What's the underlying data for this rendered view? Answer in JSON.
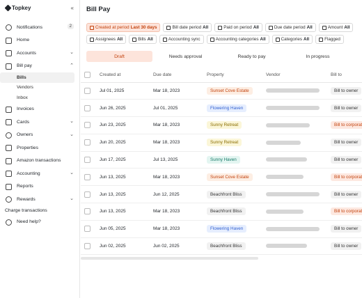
{
  "brand": {
    "name": "Topkey",
    "collapse_icon": "«"
  },
  "nav": {
    "notifications": {
      "label": "Notifications",
      "badge": "2"
    },
    "home": "Home",
    "accounts": "Accounts",
    "bill_pay": "Bill pay",
    "bill_pay_sub": [
      "Bills",
      "Vendors",
      "Inbox"
    ],
    "invoices": "Invoices",
    "cards": "Cards",
    "owners": "Owners",
    "properties": "Properties",
    "amazon": "Amazon transactions",
    "accounting": "Accounting",
    "reports": "Reports",
    "rewards": "Rewards",
    "charge": "Charge transactions",
    "help": "Need help?"
  },
  "page": {
    "title": "Bill Pay"
  },
  "filters": [
    {
      "label": "Created at period",
      "value": "Last 30 days",
      "active": true,
      "icon": "calendar-icon"
    },
    {
      "label": "Bill date period",
      "value": "All",
      "icon": "calendar-icon"
    },
    {
      "label": "Paid on period",
      "value": "All",
      "icon": "calendar-icon"
    },
    {
      "label": "Due date period",
      "value": "All",
      "icon": "calendar-icon"
    },
    {
      "label": "Amount",
      "value": "All",
      "icon": "dollar-icon"
    },
    {
      "label": "Assignees",
      "value": "All",
      "icon": "user-icon"
    },
    {
      "label": "Bills",
      "value": "All",
      "icon": "document-icon"
    },
    {
      "label": "Accounting sync",
      "value": "",
      "icon": "sync-icon"
    },
    {
      "label": "Accounting categories",
      "value": "All",
      "icon": "tag-icon"
    },
    {
      "label": "Categories",
      "value": "All",
      "icon": "grid-icon"
    },
    {
      "label": "Flagged",
      "value": "",
      "icon": "flag-icon"
    }
  ],
  "tabs": [
    "Draft",
    "Needs approval",
    "Ready to pay",
    "In progress"
  ],
  "table": {
    "headers": [
      "Created at",
      "Due date",
      "Property",
      "Vendor",
      "Bill to"
    ],
    "rows": [
      {
        "created": "Jul 01, 2025",
        "due": "Mar 18, 2023",
        "property": "Sunset Cove Estate",
        "ptype": "orange",
        "vendor_w": 0.85,
        "bill_to": "Bill to owner",
        "btype": "owner"
      },
      {
        "created": "Jun 26, 2025",
        "due": "Jul 01, 2025",
        "property": "Flowering Haven",
        "ptype": "blue",
        "vendor_w": 0.85,
        "bill_to": "Bill to owner",
        "btype": "owner"
      },
      {
        "created": "Jun 23, 2025",
        "due": "Mar 18, 2023",
        "property": "Sunny Retreat",
        "ptype": "yellow",
        "vendor_w": 0.7,
        "bill_to": "Bill to corporate",
        "btype": "corporate"
      },
      {
        "created": "Jun 20, 2025",
        "due": "Mar 18, 2023",
        "property": "Sunny Retreat",
        "ptype": "yellow",
        "vendor_w": 0.55,
        "bill_to": "Bill to owner",
        "btype": "owner"
      },
      {
        "created": "Jun 17, 2025",
        "due": "Jul 13, 2025",
        "property": "Sunny Haven",
        "ptype": "green",
        "vendor_w": 0.65,
        "bill_to": "Bill to owner",
        "btype": "owner"
      },
      {
        "created": "Jun 13, 2025",
        "due": "Mar 18, 2023",
        "property": "Sunset Cove Estate",
        "ptype": "orange",
        "vendor_w": 0.6,
        "bill_to": "Bill to corporate",
        "btype": "corporate"
      },
      {
        "created": "Jun 13, 2025",
        "due": "Jun 12, 2025",
        "property": "Beachfront Bliss",
        "ptype": "gray",
        "vendor_w": 0.85,
        "bill_to": "Bill to owner",
        "btype": "owner"
      },
      {
        "created": "Jun 13, 2025",
        "due": "Mar 18, 2023",
        "property": "Beachfront Bliss",
        "ptype": "gray",
        "vendor_w": 0.6,
        "bill_to": "Bill to corporate",
        "btype": "corporate"
      },
      {
        "created": "Jun 05, 2025",
        "due": "Mar 18, 2023",
        "property": "Flowering Haven",
        "ptype": "blue",
        "vendor_w": 0.85,
        "bill_to": "Bill to owner",
        "btype": "owner"
      },
      {
        "created": "Jun 02, 2025",
        "due": "Jun 02, 2025",
        "property": "Beachfront Bliss",
        "ptype": "gray",
        "vendor_w": 0.65,
        "bill_to": "Bill to owner",
        "btype": "owner"
      }
    ]
  },
  "colors": {
    "accent": "#c2410c",
    "accent_bg": "#fde4db",
    "tag_orange": [
      "#fdeee3",
      "#c2410c"
    ],
    "tag_blue": [
      "#e6eefe",
      "#2f5fd0"
    ],
    "tag_yellow": [
      "#fbf6d8",
      "#8a6d00"
    ],
    "tag_green": [
      "#e3f5f1",
      "#177a68"
    ],
    "tag_gray": [
      "#f1f1f1",
      "#333333"
    ],
    "bill_owner": [
      "#f1f1f1",
      "#333333"
    ],
    "bill_corporate": [
      "#fde8e0",
      "#c2410c"
    ]
  }
}
